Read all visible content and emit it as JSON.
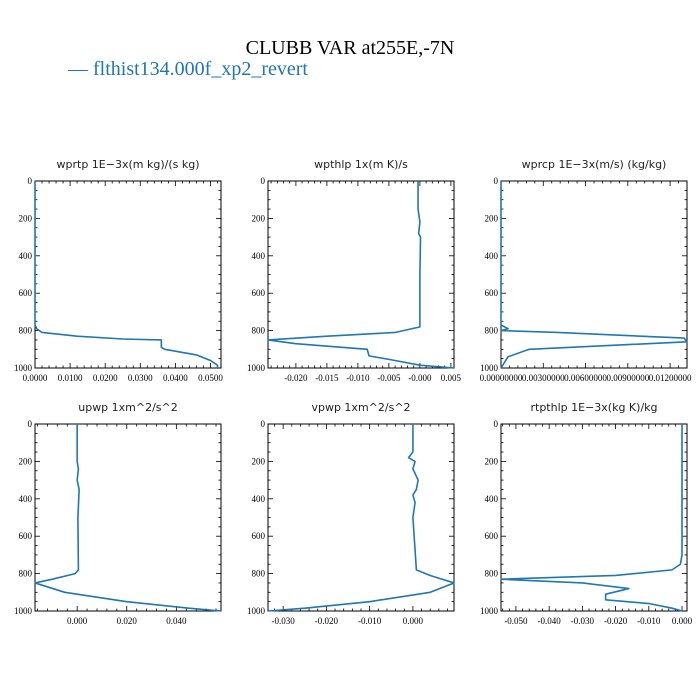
{
  "title": "CLUBB VAR at255E,-7N",
  "legend": {
    "label": "— flthist134.000f_xp2_revert",
    "color": "#1f77b4"
  },
  "chart_data": [
    {
      "type": "line",
      "title": "wprtp   1E−3x(m kg)/(s kg)",
      "xlim": [
        0,
        0.053
      ],
      "ylim": [
        1000,
        0
      ],
      "xticks": [
        0,
        0.01,
        0.02,
        0.03,
        0.04,
        0.05
      ],
      "xtick_labels": [
        "0.0000",
        "0.0100",
        "0.0200",
        "0.0300",
        "0.0400",
        "0.0500"
      ],
      "yticks": [
        0,
        200,
        400,
        600,
        800,
        1000
      ],
      "ytick_labels": [
        "0",
        "200",
        "400",
        "600",
        "800",
        "1000"
      ],
      "series": [
        {
          "color": "#1f77b4",
          "x": [
            0,
            0,
            0,
            0.0005,
            0.002,
            0.012,
            0.025,
            0.036,
            0.036,
            0.037,
            0.046,
            0.05,
            0.052,
            0.052
          ],
          "y": [
            0,
            600,
            770,
            790,
            810,
            830,
            845,
            850,
            890,
            900,
            930,
            960,
            985,
            1000
          ]
        }
      ]
    },
    {
      "type": "line",
      "title": "wpthlp   1x(m K)/s",
      "xlim": [
        -0.0245,
        0.0055
      ],
      "ylim": [
        1000,
        0
      ],
      "xticks": [
        -0.02,
        -0.015,
        -0.01,
        -0.005,
        0,
        0.005
      ],
      "xtick_labels": [
        "-0.020",
        "-0.015",
        "-0.010",
        "-0.005",
        "-0.000",
        "0.005"
      ],
      "yticks": [
        0,
        200,
        400,
        600,
        800,
        1000
      ],
      "ytick_labels": [
        "0",
        "200",
        "400",
        "600",
        "800",
        "1000"
      ],
      "series": [
        {
          "color": "#1f77b4",
          "x": [
            -0.0003,
            -0.0003,
            0,
            -0.0002,
            0.0001,
            0,
            0,
            -0.004,
            -0.015,
            -0.0245,
            -0.02,
            -0.0085,
            -0.0082,
            -0.004,
            0,
            0.0055
          ],
          "y": [
            0,
            150,
            220,
            280,
            300,
            500,
            780,
            810,
            830,
            850,
            870,
            900,
            935,
            960,
            985,
            1000
          ]
        }
      ]
    },
    {
      "type": "line",
      "title": "wprcp   1E−3x(m/s) (kg/kg)",
      "xlim": [
        0,
        0.0132
      ],
      "ylim": [
        1000,
        0
      ],
      "xticks": [
        0,
        0.003,
        0.006,
        0.009,
        0.012
      ],
      "xtick_labels": [
        "0.00000000",
        "0.00300000",
        "0.00600000",
        "0.00900000",
        "0.01200000"
      ],
      "yticks": [
        0,
        200,
        400,
        600,
        800,
        1000
      ],
      "ytick_labels": [
        "0",
        "200",
        "400",
        "600",
        "800",
        "1000"
      ],
      "series": [
        {
          "color": "#1f77b4",
          "x": [
            0,
            0,
            0.0005,
            0,
            0.004,
            0.013,
            0.0132,
            0.002,
            0.0005,
            0
          ],
          "y": [
            0,
            770,
            790,
            800,
            810,
            840,
            860,
            900,
            940,
            1000
          ]
        }
      ]
    },
    {
      "type": "line",
      "title": "upwp   1xm^2/s^2",
      "xlim": [
        -0.017,
        0.058
      ],
      "ylim": [
        1000,
        0
      ],
      "xticks": [
        0,
        0.02,
        0.04
      ],
      "xtick_labels": [
        "0.000",
        "0.020",
        "0.040"
      ],
      "yticks": [
        0,
        200,
        400,
        600,
        800,
        1000
      ],
      "ytick_labels": [
        "0",
        "200",
        "400",
        "600",
        "800",
        "1000"
      ],
      "series": [
        {
          "color": "#1f77b4",
          "x": [
            0,
            0,
            0.0005,
            0,
            0.0008,
            0.0003,
            0.0005,
            -0.0008,
            -0.01,
            -0.017,
            -0.005,
            0.02,
            0.045,
            0.058
          ],
          "y": [
            0,
            200,
            240,
            300,
            350,
            500,
            780,
            800,
            830,
            850,
            900,
            950,
            985,
            1000
          ]
        }
      ]
    },
    {
      "type": "line",
      "title": "vpwp   1xm^2/s^2",
      "xlim": [
        -0.0335,
        0.0095
      ],
      "ylim": [
        1000,
        0
      ],
      "xticks": [
        -0.03,
        -0.02,
        -0.01,
        0
      ],
      "xtick_labels": [
        "-0.030",
        "-0.020",
        "-0.010",
        "0.000"
      ],
      "yticks": [
        0,
        200,
        400,
        600,
        800,
        1000
      ],
      "ytick_labels": [
        "0",
        "200",
        "400",
        "600",
        "800",
        "1000"
      ],
      "series": [
        {
          "color": "#1f77b4",
          "x": [
            0,
            0,
            -0.001,
            0.0005,
            0,
            0.0012,
            0.0008,
            0,
            0.0005,
            0,
            0.0008,
            0.004,
            0.0095,
            0.004,
            -0.01,
            -0.025,
            -0.0335
          ],
          "y": [
            0,
            150,
            180,
            200,
            240,
            300,
            350,
            380,
            420,
            500,
            780,
            810,
            850,
            900,
            950,
            985,
            1000
          ]
        }
      ]
    },
    {
      "type": "line",
      "title": "rtpthlp   1E−3x(kg K)/kg",
      "xlim": [
        -0.0545,
        0.0015
      ],
      "ylim": [
        1000,
        0
      ],
      "xticks": [
        -0.05,
        -0.04,
        -0.03,
        -0.02,
        -0.01,
        0
      ],
      "xtick_labels": [
        "-0.050",
        "-0.040",
        "-0.030",
        "-0.020",
        "-0.010",
        "0.000"
      ],
      "yticks": [
        0,
        200,
        400,
        600,
        800,
        1000
      ],
      "ytick_labels": [
        "0",
        "200",
        "400",
        "600",
        "800",
        "1000"
      ],
      "series": [
        {
          "color": "#1f77b4",
          "x": [
            0,
            0,
            -0.0005,
            -0.003,
            -0.02,
            -0.0545,
            -0.03,
            -0.016,
            -0.023,
            -0.023,
            -0.01,
            -0.003,
            0
          ],
          "y": [
            0,
            700,
            750,
            780,
            810,
            830,
            850,
            880,
            910,
            940,
            960,
            985,
            1000
          ]
        }
      ]
    }
  ]
}
